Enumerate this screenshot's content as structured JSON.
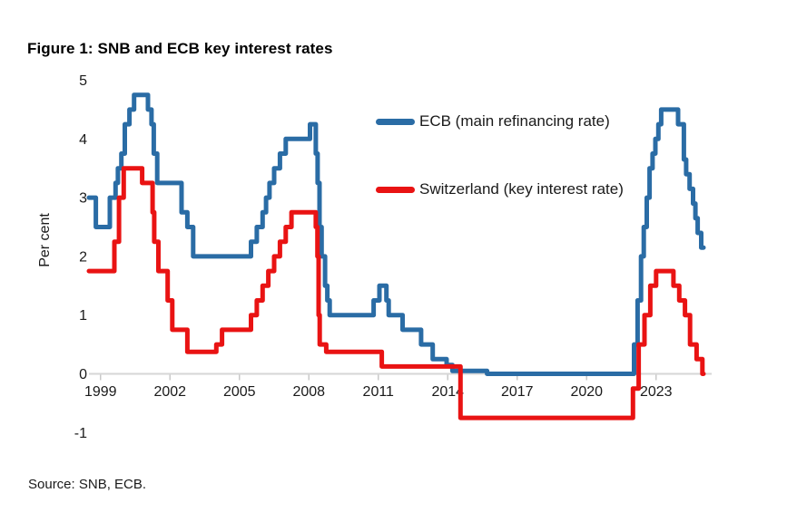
{
  "figure": {
    "title": "Figure 1: SNB and ECB key interest rates",
    "source": "Source: SNB, ECB."
  },
  "chart_data": {
    "type": "line",
    "subtype": "step",
    "title": "Figure 1: SNB and ECB key interest rates",
    "xlabel": "",
    "ylabel": "Per cent",
    "x_range": [
      1999.0,
      2025.55
    ],
    "ylim": [
      -1,
      5
    ],
    "grid": false,
    "legend_position": "inside-top-center",
    "x_ticks": [
      {
        "label": "1999",
        "year": 1999
      },
      {
        "label": "2002",
        "year": 2002
      },
      {
        "label": "2005",
        "year": 2005
      },
      {
        "label": "2008",
        "year": 2008
      },
      {
        "label": "2011",
        "year": 2011
      },
      {
        "label": "2014",
        "year": 2014
      },
      {
        "label": "2017",
        "year": 2017
      },
      {
        "label": "2020",
        "year": 2020
      },
      {
        "label": "2023",
        "year": 2023
      }
    ],
    "y_ticks": [
      {
        "label": "5",
        "value": 5
      },
      {
        "label": "4",
        "value": 4
      },
      {
        "label": "3",
        "value": 3
      },
      {
        "label": "2",
        "value": 2
      },
      {
        "label": "1",
        "value": 1
      },
      {
        "label": "0",
        "value": 0
      },
      {
        "label": "-1",
        "value": -1
      }
    ],
    "series": [
      {
        "id": "ecb",
        "name": "ECB (main refinancing rate)",
        "color": "#2a6ca5",
        "unit": "per cent",
        "points": [
          [
            1999.0,
            3.0
          ],
          [
            1999.3,
            2.5
          ],
          [
            1999.9,
            3.0
          ],
          [
            2000.15,
            3.25
          ],
          [
            2000.25,
            3.5
          ],
          [
            2000.4,
            3.75
          ],
          [
            2000.55,
            4.25
          ],
          [
            2000.75,
            4.5
          ],
          [
            2000.95,
            4.75
          ],
          [
            2001.55,
            4.5
          ],
          [
            2001.7,
            4.25
          ],
          [
            2001.8,
            3.75
          ],
          [
            2001.95,
            3.25
          ],
          [
            2003.0,
            2.75
          ],
          [
            2003.25,
            2.5
          ],
          [
            2003.5,
            2.0
          ],
          [
            2006.0,
            2.25
          ],
          [
            2006.25,
            2.5
          ],
          [
            2006.5,
            2.75
          ],
          [
            2006.65,
            3.0
          ],
          [
            2006.8,
            3.25
          ],
          [
            2007.0,
            3.5
          ],
          [
            2007.25,
            3.75
          ],
          [
            2007.5,
            4.0
          ],
          [
            2008.55,
            4.25
          ],
          [
            2008.8,
            3.75
          ],
          [
            2008.88,
            3.25
          ],
          [
            2008.96,
            2.5
          ],
          [
            2009.05,
            2.0
          ],
          [
            2009.2,
            1.5
          ],
          [
            2009.3,
            1.25
          ],
          [
            2009.4,
            1.0
          ],
          [
            2011.3,
            1.25
          ],
          [
            2011.55,
            1.5
          ],
          [
            2011.85,
            1.25
          ],
          [
            2011.95,
            1.0
          ],
          [
            2012.55,
            0.75
          ],
          [
            2013.35,
            0.5
          ],
          [
            2013.85,
            0.25
          ],
          [
            2014.45,
            0.15
          ],
          [
            2014.7,
            0.05
          ],
          [
            2016.2,
            0.0
          ],
          [
            2022.55,
            0.5
          ],
          [
            2022.7,
            1.25
          ],
          [
            2022.85,
            2.0
          ],
          [
            2022.97,
            2.5
          ],
          [
            2023.1,
            3.0
          ],
          [
            2023.22,
            3.5
          ],
          [
            2023.35,
            3.75
          ],
          [
            2023.47,
            4.0
          ],
          [
            2023.6,
            4.25
          ],
          [
            2023.72,
            4.5
          ],
          [
            2024.45,
            4.25
          ],
          [
            2024.7,
            3.65
          ],
          [
            2024.8,
            3.4
          ],
          [
            2024.95,
            3.15
          ],
          [
            2025.1,
            2.9
          ],
          [
            2025.2,
            2.65
          ],
          [
            2025.3,
            2.4
          ],
          [
            2025.45,
            2.15
          ],
          [
            2025.55,
            2.15
          ]
        ]
      },
      {
        "id": "snb",
        "name": "Switzerland (key interest rate)",
        "color": "#e91313",
        "unit": "per cent",
        "points": [
          [
            1999.0,
            1.75
          ],
          [
            2000.1,
            2.25
          ],
          [
            2000.3,
            3.0
          ],
          [
            2000.5,
            3.5
          ],
          [
            2001.3,
            3.25
          ],
          [
            2001.75,
            2.75
          ],
          [
            2001.82,
            2.25
          ],
          [
            2002.0,
            1.75
          ],
          [
            2002.4,
            1.25
          ],
          [
            2002.6,
            0.75
          ],
          [
            2003.25,
            0.375
          ],
          [
            2004.5,
            0.5
          ],
          [
            2004.75,
            0.75
          ],
          [
            2006.0,
            1.0
          ],
          [
            2006.25,
            1.25
          ],
          [
            2006.5,
            1.5
          ],
          [
            2006.75,
            1.75
          ],
          [
            2007.0,
            2.0
          ],
          [
            2007.25,
            2.25
          ],
          [
            2007.5,
            2.5
          ],
          [
            2007.75,
            2.75
          ],
          [
            2008.8,
            2.5
          ],
          [
            2008.87,
            2.0
          ],
          [
            2008.92,
            1.0
          ],
          [
            2008.97,
            0.5
          ],
          [
            2009.25,
            0.375
          ],
          [
            2011.65,
            0.125
          ],
          [
            2015.05,
            -0.75
          ],
          [
            2022.5,
            -0.25
          ],
          [
            2022.75,
            0.5
          ],
          [
            2023.0,
            1.0
          ],
          [
            2023.25,
            1.5
          ],
          [
            2023.5,
            1.75
          ],
          [
            2024.25,
            1.5
          ],
          [
            2024.5,
            1.25
          ],
          [
            2024.75,
            1.0
          ],
          [
            2024.97,
            0.5
          ],
          [
            2025.25,
            0.25
          ],
          [
            2025.5,
            0.0
          ],
          [
            2025.55,
            0.0
          ]
        ]
      }
    ]
  }
}
